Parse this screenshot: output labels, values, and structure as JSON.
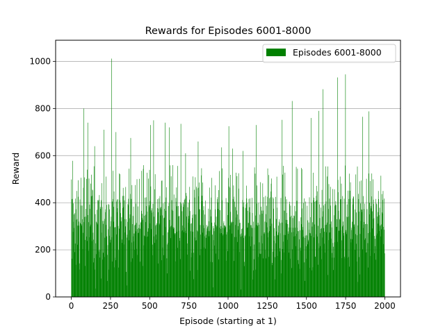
{
  "chart_data": {
    "type": "bar",
    "title": "Rewards for Episodes 6001-8000",
    "xlabel": "Episode (starting at 1)",
    "ylabel": "Reward",
    "xlim": [
      -100,
      2100
    ],
    "ylim": [
      0,
      1090
    ],
    "xticks": [
      0,
      250,
      500,
      750,
      1000,
      1250,
      1500,
      1750,
      2000
    ],
    "yticks": [
      0,
      200,
      400,
      600,
      800,
      1000
    ],
    "grid": "y",
    "legend_position": "top-right",
    "bar_color": "#008000",
    "n_episodes": 2000,
    "series": [
      {
        "name": "Episodes 6001-8000",
        "peaks": [
          {
            "x": 10,
            "y": 578
          },
          {
            "x": 35,
            "y": 450
          },
          {
            "x": 80,
            "y": 800
          },
          {
            "x": 105,
            "y": 740
          },
          {
            "x": 150,
            "y": 640
          },
          {
            "x": 210,
            "y": 710
          },
          {
            "x": 258,
            "y": 1012
          },
          {
            "x": 285,
            "y": 700
          },
          {
            "x": 380,
            "y": 675
          },
          {
            "x": 420,
            "y": 500
          },
          {
            "x": 505,
            "y": 730
          },
          {
            "x": 525,
            "y": 750
          },
          {
            "x": 600,
            "y": 740
          },
          {
            "x": 625,
            "y": 720
          },
          {
            "x": 700,
            "y": 735
          },
          {
            "x": 730,
            "y": 610
          },
          {
            "x": 810,
            "y": 660
          },
          {
            "x": 960,
            "y": 635
          },
          {
            "x": 1005,
            "y": 725
          },
          {
            "x": 1030,
            "y": 630
          },
          {
            "x": 1095,
            "y": 620
          },
          {
            "x": 1180,
            "y": 730
          },
          {
            "x": 1345,
            "y": 752
          },
          {
            "x": 1410,
            "y": 832
          },
          {
            "x": 1530,
            "y": 760
          },
          {
            "x": 1580,
            "y": 790
          },
          {
            "x": 1605,
            "y": 882
          },
          {
            "x": 1700,
            "y": 932
          },
          {
            "x": 1750,
            "y": 945
          },
          {
            "x": 1860,
            "y": 765
          },
          {
            "x": 1900,
            "y": 788
          },
          {
            "x": 1960,
            "y": 450
          },
          {
            "x": 1990,
            "y": 450
          }
        ]
      }
    ]
  }
}
